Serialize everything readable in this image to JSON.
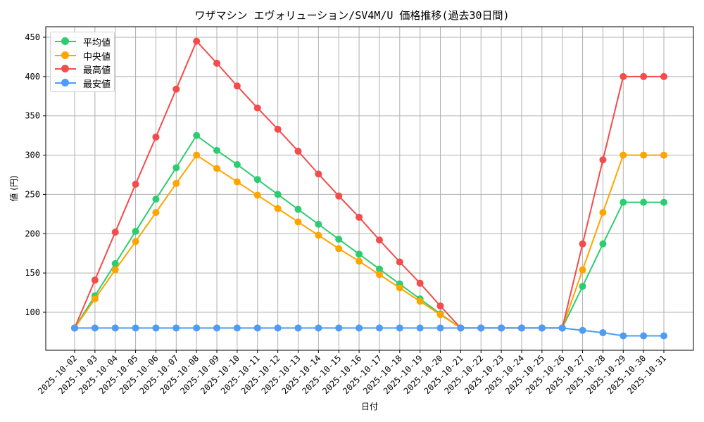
{
  "chart_data": {
    "type": "line",
    "title": "ワザマシン エヴォリューション/SV4M/U 価格推移(過去30日間)",
    "xlabel": "日付",
    "ylabel": "値 (円)",
    "ylim": [
      52,
      462
    ],
    "yticks": [
      100,
      150,
      200,
      250,
      300,
      350,
      400,
      450
    ],
    "grid": true,
    "legend_position": "upper left",
    "x": [
      "2025-10-02",
      "2025-10-03",
      "2025-10-04",
      "2025-10-05",
      "2025-10-06",
      "2025-10-07",
      "2025-10-08",
      "2025-10-09",
      "2025-10-10",
      "2025-10-11",
      "2025-10-12",
      "2025-10-13",
      "2025-10-14",
      "2025-10-15",
      "2025-10-16",
      "2025-10-17",
      "2025-10-18",
      "2025-10-19",
      "2025-10-20",
      "2025-10-21",
      "2025-10-22",
      "2025-10-23",
      "2025-10-24",
      "2025-10-25",
      "2025-10-26",
      "2025-10-27",
      "2025-10-28",
      "2025-10-29",
      "2025-10-30",
      "2025-10-31"
    ],
    "series": [
      {
        "name": "平均値",
        "color": "#2ecc71",
        "values": [
          80,
          121,
          162,
          203,
          244,
          284,
          325,
          306,
          288,
          269,
          250,
          231,
          212,
          193,
          174,
          155,
          136,
          117,
          98,
          80,
          80,
          80,
          80,
          80,
          80,
          133,
          187,
          240,
          240,
          240
        ]
      },
      {
        "name": "中央値",
        "color": "#ffa500",
        "values": [
          80,
          117,
          154,
          190,
          227,
          264,
          300,
          283,
          266,
          249,
          232,
          215,
          198,
          181,
          165,
          148,
          131,
          114,
          97,
          80,
          80,
          80,
          80,
          80,
          80,
          154,
          227,
          300,
          300,
          300
        ]
      },
      {
        "name": "最高値",
        "color": "#f44b4b",
        "values": [
          80,
          141,
          202,
          263,
          323,
          384,
          445,
          417,
          388,
          360,
          333,
          305,
          276,
          248,
          221,
          192,
          164,
          137,
          108,
          80,
          80,
          80,
          80,
          80,
          80,
          187,
          294,
          400,
          400,
          400
        ]
      },
      {
        "name": "最安値",
        "color": "#4e9cf5",
        "values": [
          80,
          80,
          80,
          80,
          80,
          80,
          80,
          80,
          80,
          80,
          80,
          80,
          80,
          80,
          80,
          80,
          80,
          80,
          80,
          80,
          80,
          80,
          80,
          80,
          80,
          77,
          74,
          70,
          70,
          70
        ]
      }
    ]
  }
}
